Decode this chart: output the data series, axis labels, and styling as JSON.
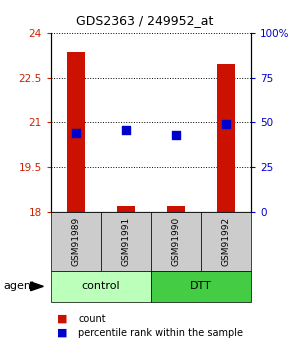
{
  "title": "GDS2363 / 249952_at",
  "samples": [
    "GSM91989",
    "GSM91991",
    "GSM91990",
    "GSM91992"
  ],
  "red_values": [
    23.35,
    18.22,
    18.22,
    22.95
  ],
  "blue_values": [
    44,
    46,
    43,
    49
  ],
  "ylim_left": [
    18,
    24
  ],
  "ylim_right": [
    0,
    100
  ],
  "yticks_left": [
    18,
    19.5,
    21,
    22.5,
    24
  ],
  "yticks_right": [
    0,
    25,
    50,
    75,
    100
  ],
  "ytick_labels_left": [
    "18",
    "19.5",
    "21",
    "22.5",
    "24"
  ],
  "ytick_labels_right": [
    "0",
    "25",
    "50",
    "75",
    "100%"
  ],
  "groups": [
    {
      "name": "control",
      "samples": [
        0,
        1
      ],
      "color": "#bbffbb"
    },
    {
      "name": "DTT",
      "samples": [
        2,
        3
      ],
      "color": "#44cc44"
    }
  ],
  "bar_color": "#cc1100",
  "dot_color": "#0000cc",
  "bar_width": 0.35,
  "dot_size": 28,
  "background_color": "#ffffff",
  "sample_box_color": "#cccccc",
  "label_count": "count",
  "label_percentile": "percentile rank within the sample",
  "agent_label": "agent"
}
